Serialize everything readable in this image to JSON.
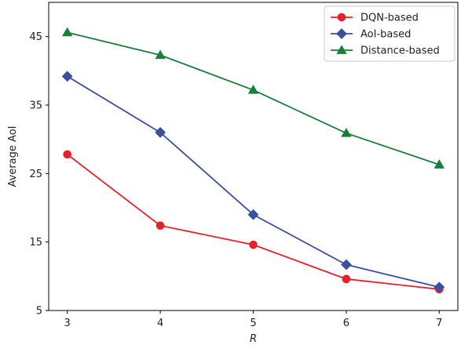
{
  "chart_data": {
    "type": "line",
    "xlabel": "R",
    "ylabel": "Average AoI",
    "x": [
      3,
      4,
      5,
      6,
      7
    ],
    "xlim": [
      2.8,
      7.2
    ],
    "ylim": [
      5,
      50
    ],
    "yticks": [
      5,
      15,
      25,
      35,
      45
    ],
    "grid": false,
    "legend_position": "top-right",
    "series": [
      {
        "name": "DQN-based",
        "values": [
          27.8,
          17.4,
          14.6,
          9.6,
          8.1
        ],
        "color": "#e8202a",
        "marker": "circle"
      },
      {
        "name": "AoI-based",
        "values": [
          39.2,
          31.0,
          19.0,
          11.7,
          8.4
        ],
        "color": "#3a4fa0",
        "marker": "diamond"
      },
      {
        "name": "Distance-based",
        "values": [
          45.6,
          42.3,
          37.2,
          30.9,
          26.3
        ],
        "color": "#178038",
        "marker": "triangle"
      }
    ]
  }
}
